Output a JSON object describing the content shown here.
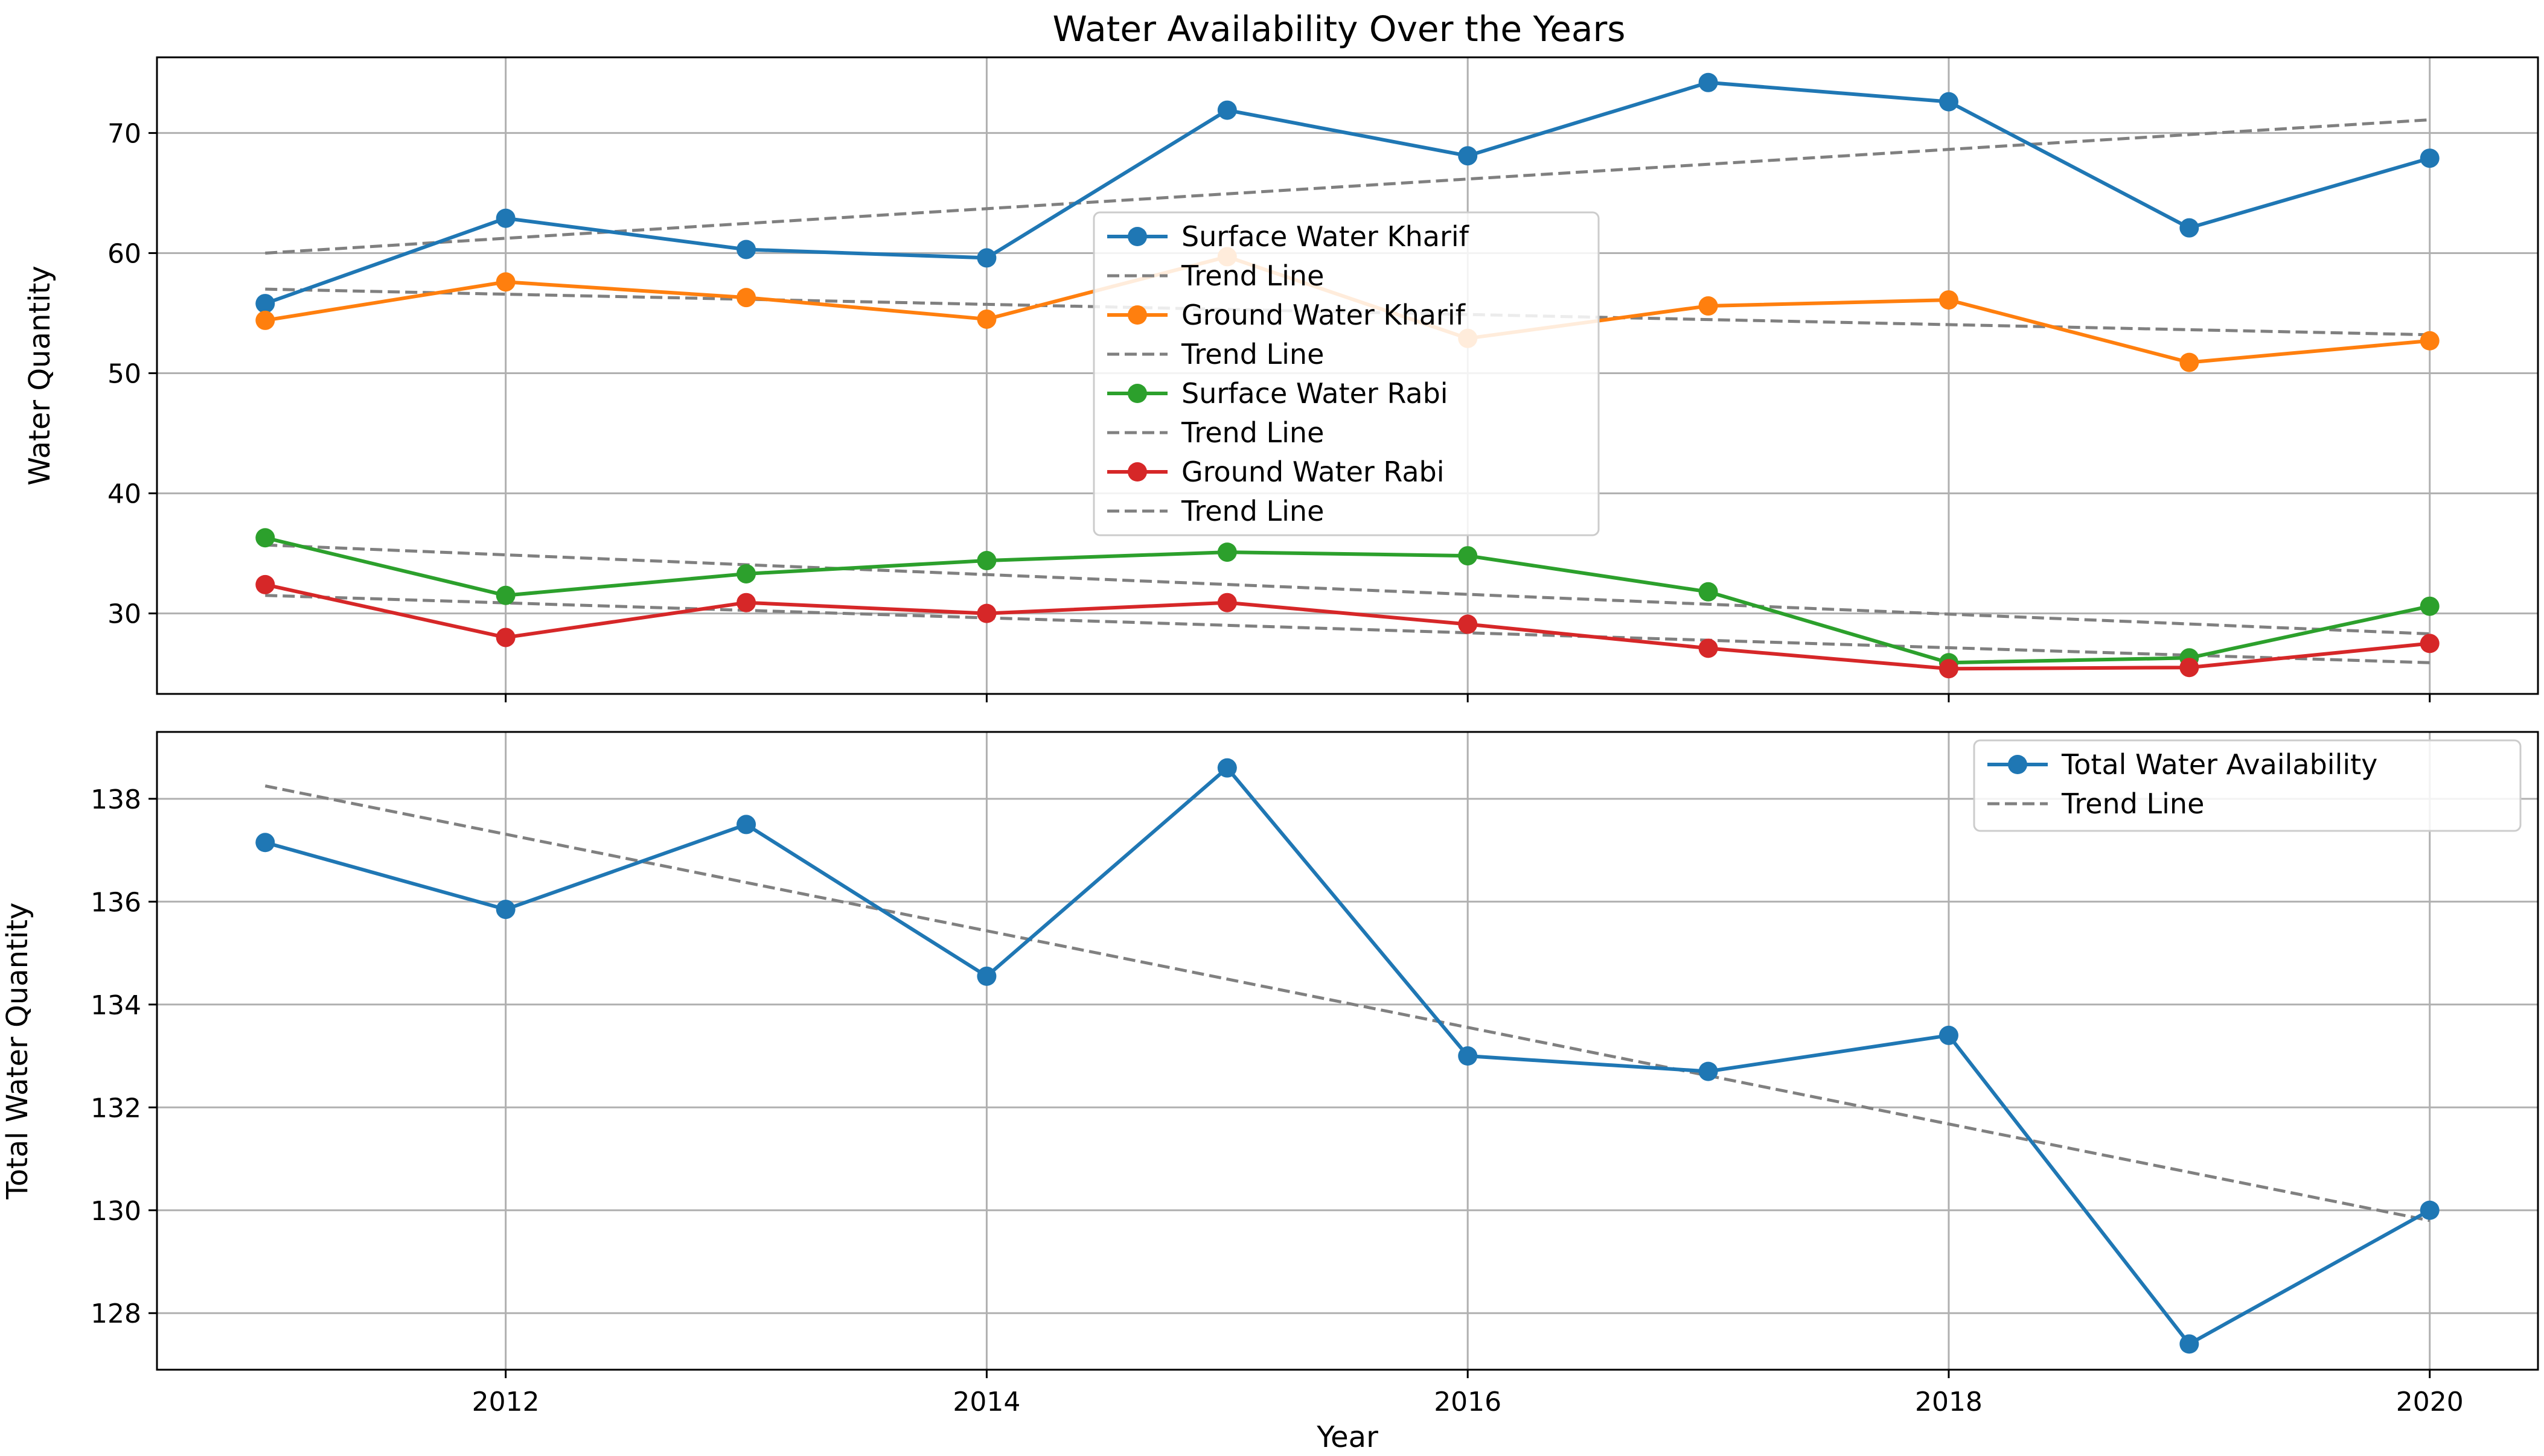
{
  "title": "Water Availability Over the Years",
  "chart_data": [
    {
      "type": "line",
      "title": "Water Availability Over the Years",
      "xlabel": "",
      "ylabel": "Water Quantity",
      "x": [
        2011,
        2012,
        2013,
        2014,
        2015,
        2016,
        2017,
        2018,
        2019,
        2020
      ],
      "xlim": [
        2010.55,
        2020.45
      ],
      "ylim": [
        23.3,
        76.3
      ],
      "xticks": [
        2012,
        2014,
        2016,
        2018,
        2020
      ],
      "yticks": [
        30,
        40,
        50,
        60,
        70
      ],
      "grid": true,
      "legend_position": "upper-center",
      "series": [
        {
          "name": "Surface Water Kharif",
          "color": "#1f77b4",
          "values": [
            55.8,
            62.9,
            60.3,
            59.6,
            71.9,
            68.1,
            74.2,
            72.6,
            62.1,
            67.9
          ],
          "trend_label": "Trend Line",
          "trend": [
            60.0,
            71.1
          ]
        },
        {
          "name": "Ground Water Kharif",
          "color": "#ff7f0e",
          "values": [
            54.4,
            57.6,
            56.3,
            54.5,
            59.7,
            52.9,
            55.6,
            56.1,
            50.9,
            52.7
          ],
          "trend_label": "Trend Line",
          "trend": [
            57.0,
            53.2
          ]
        },
        {
          "name": "Surface Water Rabi",
          "color": "#2ca02c",
          "values": [
            36.3,
            31.5,
            33.3,
            34.4,
            35.1,
            34.8,
            31.8,
            25.9,
            26.3,
            30.6
          ],
          "trend_label": "Trend Line",
          "trend": [
            35.7,
            28.3
          ]
        },
        {
          "name": "Ground Water Rabi",
          "color": "#d62728",
          "values": [
            32.4,
            28.0,
            30.9,
            30.0,
            30.9,
            29.1,
            27.1,
            25.4,
            25.5,
            27.5
          ],
          "trend_label": "Trend Line",
          "trend": [
            31.5,
            25.9
          ]
        }
      ]
    },
    {
      "type": "line",
      "title": "",
      "xlabel": "Year",
      "ylabel": "Total Water Quantity",
      "x": [
        2011,
        2012,
        2013,
        2014,
        2015,
        2016,
        2017,
        2018,
        2019,
        2020
      ],
      "xlim": [
        2010.55,
        2020.45
      ],
      "ylim": [
        126.9,
        139.3
      ],
      "xticks": [
        2012,
        2014,
        2016,
        2018,
        2020
      ],
      "xtick_labels": [
        "2012",
        "2014",
        "2016",
        "2018",
        "2020"
      ],
      "yticks": [
        128,
        130,
        132,
        134,
        136,
        138
      ],
      "grid": true,
      "legend_position": "upper-right",
      "series": [
        {
          "name": "Total Water Availability",
          "color": "#1f77b4",
          "values": [
            137.15,
            135.85,
            137.5,
            134.55,
            138.6,
            133.0,
            132.7,
            133.4,
            127.4,
            130.0
          ],
          "trend_label": "Trend Line",
          "trend": [
            138.25,
            129.8
          ]
        }
      ]
    }
  ]
}
